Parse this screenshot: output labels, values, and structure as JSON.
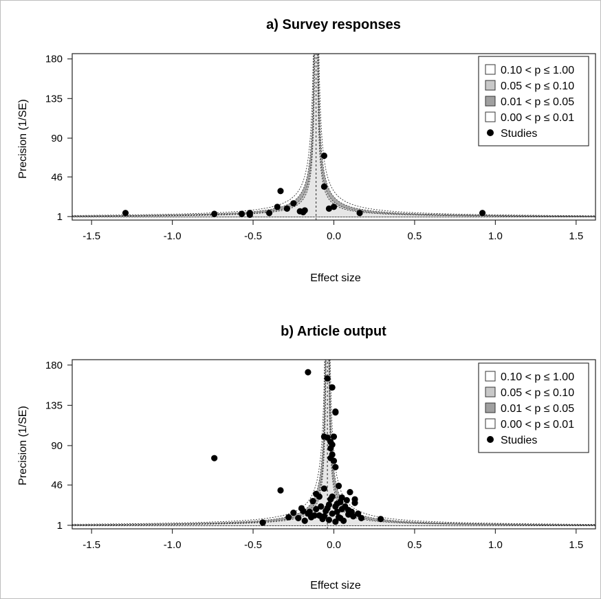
{
  "legend": {
    "entries": [
      {
        "label": "0.10 < p ≤ 1.00",
        "fill": "#ffffff"
      },
      {
        "label": "0.05 < p ≤ 0.10",
        "fill": "#c8c8c8"
      },
      {
        "label": "0.01 < p ≤ 0.05",
        "fill": "#a0a0a0"
      },
      {
        "label": "0.00 < p ≤ 0.01",
        "fill": "#ffffff"
      }
    ],
    "studies_label": "Studies"
  },
  "chart_data": [
    {
      "type": "scatter",
      "title": "a) Survey responses",
      "xlabel": "Effect size",
      "ylabel": "Precision (1/SE)",
      "xticks": [
        "-1.5",
        "-1.0",
        "-0.5",
        "0.0",
        "0.5",
        "1.0",
        "1.5"
      ],
      "yticks": [
        "1",
        "46",
        "90",
        "135",
        "180"
      ],
      "xlim": [
        -1.62,
        1.62
      ],
      "ylim": [
        -3,
        186
      ],
      "center": -0.11,
      "legend_position": "top-right",
      "points": [
        [
          -1.29,
          5
        ],
        [
          -0.74,
          4
        ],
        [
          -0.57,
          4
        ],
        [
          -0.52,
          3
        ],
        [
          -0.52,
          5
        ],
        [
          -0.4,
          5
        ],
        [
          -0.35,
          12
        ],
        [
          -0.33,
          30
        ],
        [
          -0.29,
          10
        ],
        [
          -0.25,
          16
        ],
        [
          -0.21,
          7
        ],
        [
          -0.19,
          6
        ],
        [
          -0.18,
          8
        ],
        [
          -0.06,
          70
        ],
        [
          -0.06,
          35
        ],
        [
          -0.03,
          10
        ],
        [
          0.0,
          12
        ],
        [
          0.16,
          5
        ],
        [
          0.92,
          5
        ]
      ]
    },
    {
      "type": "scatter",
      "title": "b) Article output",
      "xlabel": "Effect size",
      "ylabel": "Precision (1/SE)",
      "xticks": [
        "-1.5",
        "-1.0",
        "-0.5",
        "0.0",
        "0.5",
        "1.0",
        "1.5"
      ],
      "yticks": [
        "1",
        "46",
        "90",
        "135",
        "180"
      ],
      "xlim": [
        -1.62,
        1.62
      ],
      "ylim": [
        -3,
        186
      ],
      "center": -0.04,
      "legend_position": "top-right",
      "points": [
        [
          -0.16,
          172
        ],
        [
          -0.04,
          165
        ],
        [
          -0.01,
          155
        ],
        [
          0.01,
          127
        ],
        [
          0.01,
          128
        ],
        [
          -0.06,
          100
        ],
        [
          -0.04,
          99
        ],
        [
          -0.02,
          94
        ],
        [
          -0.01,
          91
        ],
        [
          -0.02,
          87
        ],
        [
          0.0,
          100
        ],
        [
          -0.01,
          80
        ],
        [
          -0.02,
          76
        ],
        [
          0.0,
          73
        ],
        [
          0.01,
          66
        ],
        [
          -0.74,
          76
        ],
        [
          -0.33,
          40
        ],
        [
          -0.06,
          42
        ],
        [
          0.03,
          45
        ],
        [
          -0.11,
          36
        ],
        [
          0.1,
          38
        ],
        [
          -0.09,
          33
        ],
        [
          0.05,
          32
        ],
        [
          -0.02,
          30
        ],
        [
          0.13,
          26
        ],
        [
          -0.13,
          28
        ],
        [
          0.07,
          22
        ],
        [
          -0.03,
          24
        ],
        [
          0.02,
          25
        ],
        [
          -0.2,
          20
        ],
        [
          -0.25,
          15
        ],
        [
          -0.16,
          14
        ],
        [
          0.15,
          14
        ],
        [
          -0.05,
          17
        ],
        [
          0.09,
          18
        ],
        [
          -0.09,
          12
        ],
        [
          0.12,
          11
        ],
        [
          -0.14,
          10
        ],
        [
          0.03,
          10
        ],
        [
          -0.01,
          14
        ],
        [
          0.04,
          9
        ],
        [
          -0.22,
          9
        ],
        [
          0.17,
          9
        ],
        [
          -0.07,
          8
        ],
        [
          -0.03,
          7
        ],
        [
          0.06,
          6
        ],
        [
          -0.18,
          6
        ],
        [
          0.01,
          5
        ],
        [
          -0.11,
          19
        ],
        [
          -0.19,
          17
        ],
        [
          0.05,
          19
        ],
        [
          -0.04,
          20
        ],
        [
          0.01,
          22
        ],
        [
          -0.08,
          22
        ],
        [
          0.08,
          29
        ],
        [
          0.13,
          30
        ],
        [
          -0.12,
          12
        ],
        [
          0.02,
          16
        ],
        [
          0.09,
          13
        ],
        [
          -0.28,
          10
        ],
        [
          0.29,
          8
        ],
        [
          -0.44,
          4
        ],
        [
          -0.15,
          16
        ],
        [
          -0.06,
          11
        ],
        [
          0.11,
          16
        ],
        [
          0.04,
          27
        ],
        [
          -0.01,
          33
        ]
      ]
    }
  ]
}
